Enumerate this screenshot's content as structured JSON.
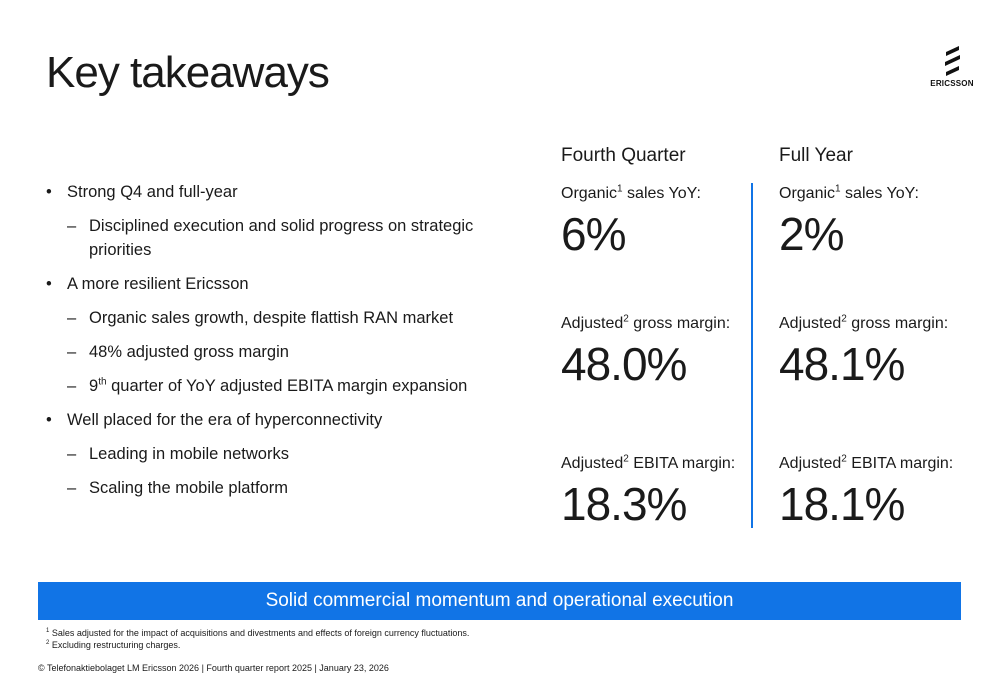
{
  "title": "Key takeaways",
  "logo": {
    "wordmark": "ERICSSON"
  },
  "bullets": {
    "b1": "Strong Q4 and full-year",
    "b1_1": "Disciplined execution and solid progress on strategic priorities",
    "b2": "A more resilient Ericsson",
    "b2_1": "Organic sales growth, despite flattish RAN market",
    "b2_2": "48% adjusted gross margin",
    "b2_3_prefix": "9",
    "b2_3_sup": "th",
    "b2_3_rest": " quarter of YoY adjusted EBITA margin expansion",
    "b3": "Well placed for the era of hyperconnectivity",
    "b3_1": "Leading in mobile networks",
    "b3_2": "Scaling the mobile platform",
    "bullet_mark": "•",
    "dash_mark": "–"
  },
  "metrics": {
    "labels": {
      "organic": "Organic",
      "organic_sup": "1",
      "organic_rest": " sales YoY:",
      "adjusted": "Adjusted",
      "adjusted_sup": "2",
      "gross_rest": " gross margin:",
      "ebita_rest": " EBITA margin:"
    },
    "fourth_quarter": {
      "heading": "Fourth Quarter",
      "organic_sales": "6%",
      "gross_margin": "48.0%",
      "ebita_margin": "18.3%"
    },
    "full_year": {
      "heading": "Full Year",
      "organic_sales": "2%",
      "gross_margin": "48.1%",
      "ebita_margin": "18.1%"
    }
  },
  "banner": "Solid commercial momentum and operational execution",
  "footnotes": {
    "f1_sup": "1",
    "f1": " Sales adjusted for the impact of acquisitions and divestments and effects of foreign currency fluctuations.",
    "f2_sup": "2",
    "f2": " Excluding restructuring charges."
  },
  "copyright": "© Telefonaktiebolaget LM Ericsson 2026 | Fourth quarter report 2025 | January 23, 2026",
  "colors": {
    "accent": "#1174e6",
    "text": "#1a1a1a",
    "background": "#ffffff"
  }
}
